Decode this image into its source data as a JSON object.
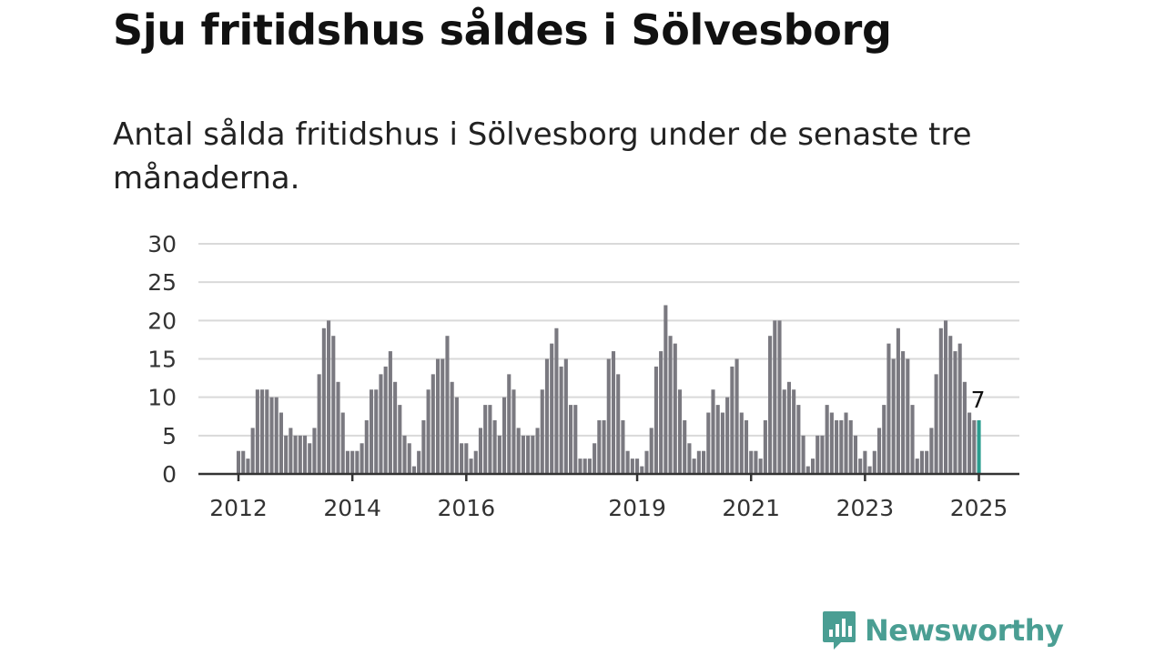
{
  "title": "Sju fritidshus såldes i Sölvesborg",
  "subtitle": "Antal sålda fritidshus i Sölvesborg under de senaste tre månaderna.",
  "brand": {
    "name": "Newsworthy",
    "color": "#4a9e93"
  },
  "colors": {
    "bar": "#7a7980",
    "highlight": "#2a9d8f",
    "grid": "#d9d9d9",
    "axis": "#333333"
  },
  "chart_data": {
    "type": "bar",
    "x_start": "2012-01",
    "ylim": [
      0,
      30
    ],
    "yticks": [
      0,
      5,
      10,
      15,
      20,
      25,
      30
    ],
    "xtick_labels": [
      "2012",
      "2014",
      "2016",
      "2019",
      "2021",
      "2023",
      "2025"
    ],
    "xticks": [
      "2012-01",
      "2014-01",
      "2016-01",
      "2019-01",
      "2021-01",
      "2023-01",
      "2025-01"
    ],
    "grid": true,
    "highlight_last": true,
    "last_value_label": "7",
    "values": [
      3,
      3,
      2,
      6,
      11,
      11,
      11,
      10,
      10,
      8,
      5,
      6,
      5,
      5,
      5,
      4,
      6,
      13,
      19,
      20,
      18,
      12,
      8,
      3,
      3,
      3,
      4,
      7,
      11,
      11,
      13,
      14,
      16,
      12,
      9,
      5,
      4,
      1,
      3,
      7,
      11,
      13,
      15,
      15,
      18,
      12,
      10,
      4,
      4,
      2,
      3,
      6,
      9,
      9,
      7,
      5,
      10,
      13,
      11,
      6,
      5,
      5,
      5,
      6,
      11,
      15,
      17,
      19,
      14,
      15,
      9,
      9,
      2,
      2,
      2,
      4,
      7,
      7,
      15,
      16,
      13,
      7,
      3,
      2,
      2,
      1,
      3,
      6,
      14,
      16,
      22,
      18,
      17,
      11,
      7,
      4,
      2,
      3,
      3,
      8,
      11,
      9,
      8,
      10,
      14,
      15,
      8,
      7,
      3,
      3,
      2,
      7,
      18,
      20,
      20,
      11,
      12,
      11,
      9,
      5,
      1,
      2,
      5,
      5,
      9,
      8,
      7,
      7,
      8,
      7,
      5,
      2,
      3,
      1,
      3,
      6,
      9,
      17,
      15,
      19,
      16,
      15,
      9,
      2,
      3,
      3,
      6,
      13,
      19,
      20,
      18,
      16,
      17,
      12,
      8,
      7,
      7
    ]
  }
}
